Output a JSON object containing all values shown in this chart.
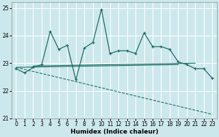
{
  "title": "",
  "xlabel": "Humidex (Indice chaleur)",
  "xlim": [
    -0.5,
    23.5
  ],
  "ylim": [
    21,
    25.2
  ],
  "yticks": [
    21,
    22,
    23,
    24,
    25
  ],
  "xticks": [
    0,
    1,
    2,
    3,
    4,
    5,
    6,
    7,
    8,
    9,
    10,
    11,
    12,
    13,
    14,
    15,
    16,
    17,
    18,
    19,
    20,
    21,
    22,
    23
  ],
  "bg_color": "#cce8ec",
  "line_color": "#1a6b60",
  "grid_color": "#ffffff",
  "line1_x": [
    0,
    1,
    2,
    3,
    4,
    5,
    6,
    7,
    8,
    9,
    10,
    11,
    12,
    13,
    14,
    15,
    16,
    17,
    18,
    19,
    20,
    21,
    22,
    23
  ],
  "line1_y": [
    22.8,
    22.65,
    22.85,
    22.95,
    24.15,
    23.5,
    23.65,
    22.4,
    23.55,
    23.75,
    24.95,
    23.35,
    23.45,
    23.45,
    23.35,
    24.1,
    23.6,
    23.6,
    23.5,
    23.05,
    22.95,
    22.8,
    22.8,
    22.45
  ],
  "line2_x": [
    0,
    19
  ],
  "line2_y": [
    22.85,
    22.95
  ],
  "line3_x": [
    0,
    23
  ],
  "line3_y": [
    22.85,
    21.15
  ],
  "line4_x": [
    2,
    21
  ],
  "line4_y": [
    22.9,
    23.0
  ]
}
